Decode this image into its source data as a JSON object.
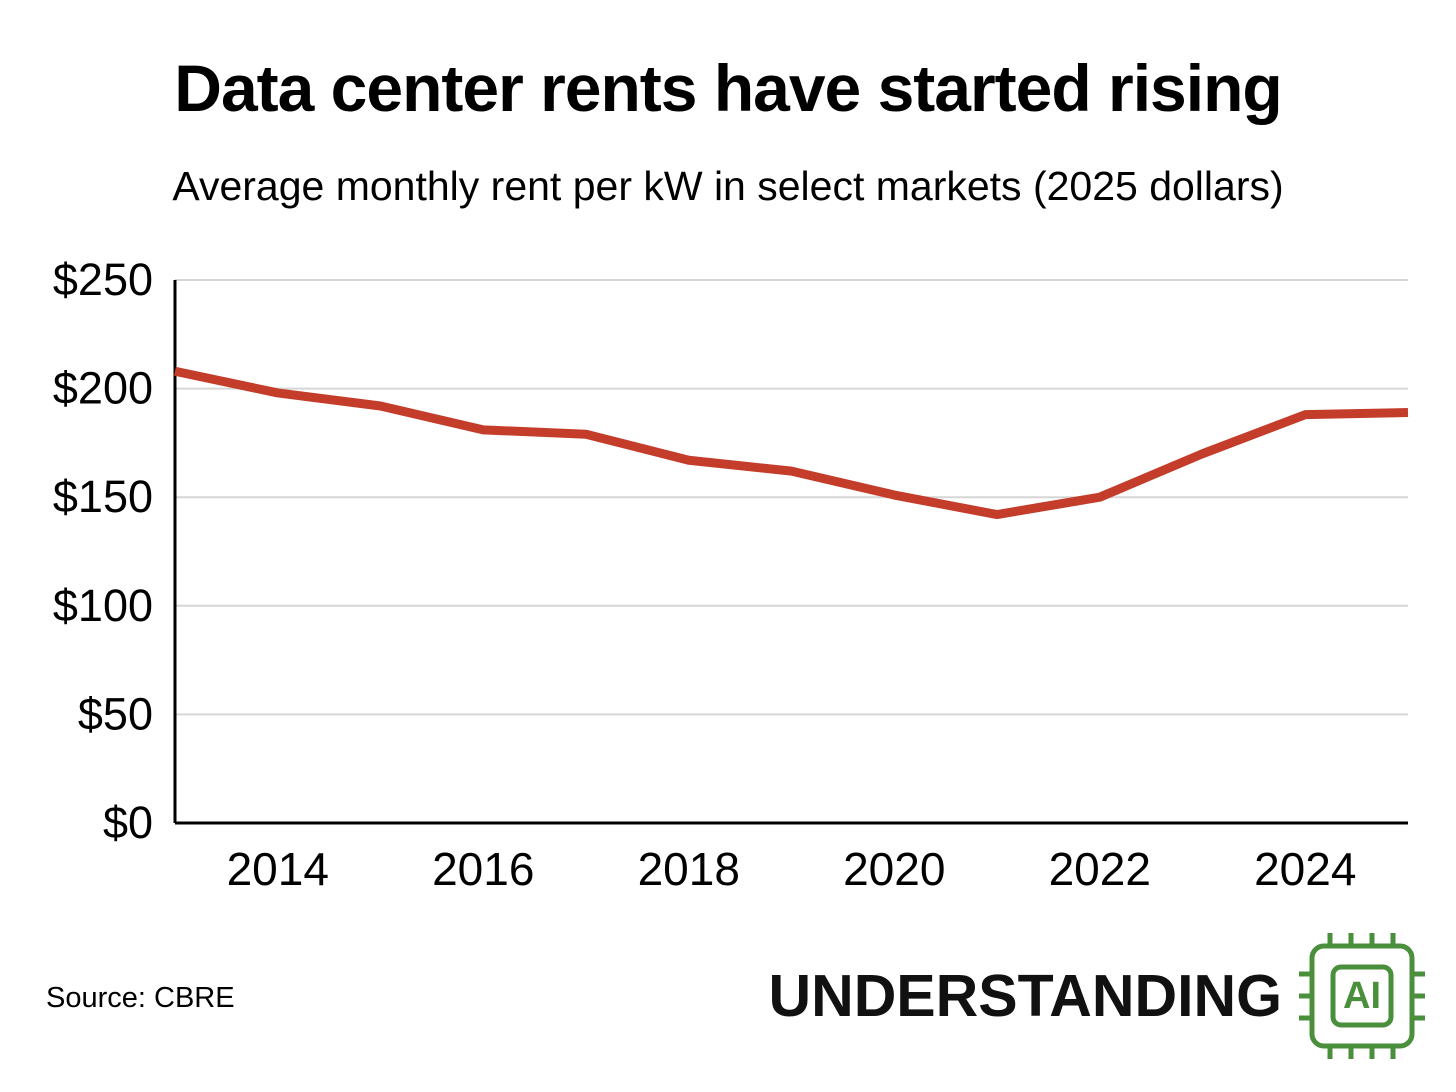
{
  "title": "Data center rents have started rising",
  "subtitle": "Average monthly rent per kW in select markets (2025 dollars)",
  "source": "Source: CBRE",
  "logo": {
    "text": "UNDERSTANDING",
    "chip_label": "AI"
  },
  "colors": {
    "line": "#c43d2b",
    "grid": "#d6d6d6",
    "axis": "#000000",
    "chip_green": "#4a8f3c",
    "text": "#000000"
  },
  "chart_data": {
    "type": "line",
    "title": "Data center rents have started rising",
    "subtitle": "Average monthly rent per kW in select markets (2025 dollars)",
    "series_name": "Average monthly rent per kW (2025 dollars)",
    "x": [
      2013,
      2014,
      2015,
      2016,
      2017,
      2018,
      2019,
      2020,
      2021,
      2022,
      2023,
      2024,
      2025
    ],
    "values": [
      208,
      198,
      192,
      181,
      179,
      167,
      162,
      151,
      142,
      150,
      170,
      188,
      189
    ],
    "xlabel": "",
    "ylabel": "",
    "xlim": [
      2013,
      2025
    ],
    "ylim": [
      0,
      250
    ],
    "x_ticks": [
      2014,
      2016,
      2018,
      2020,
      2022,
      2024
    ],
    "y_ticks": [
      0,
      50,
      100,
      150,
      200,
      250
    ],
    "y_tick_labels": [
      "$0",
      "$50",
      "$100",
      "$150",
      "$200",
      "$250"
    ],
    "grid": true,
    "legend": false
  }
}
